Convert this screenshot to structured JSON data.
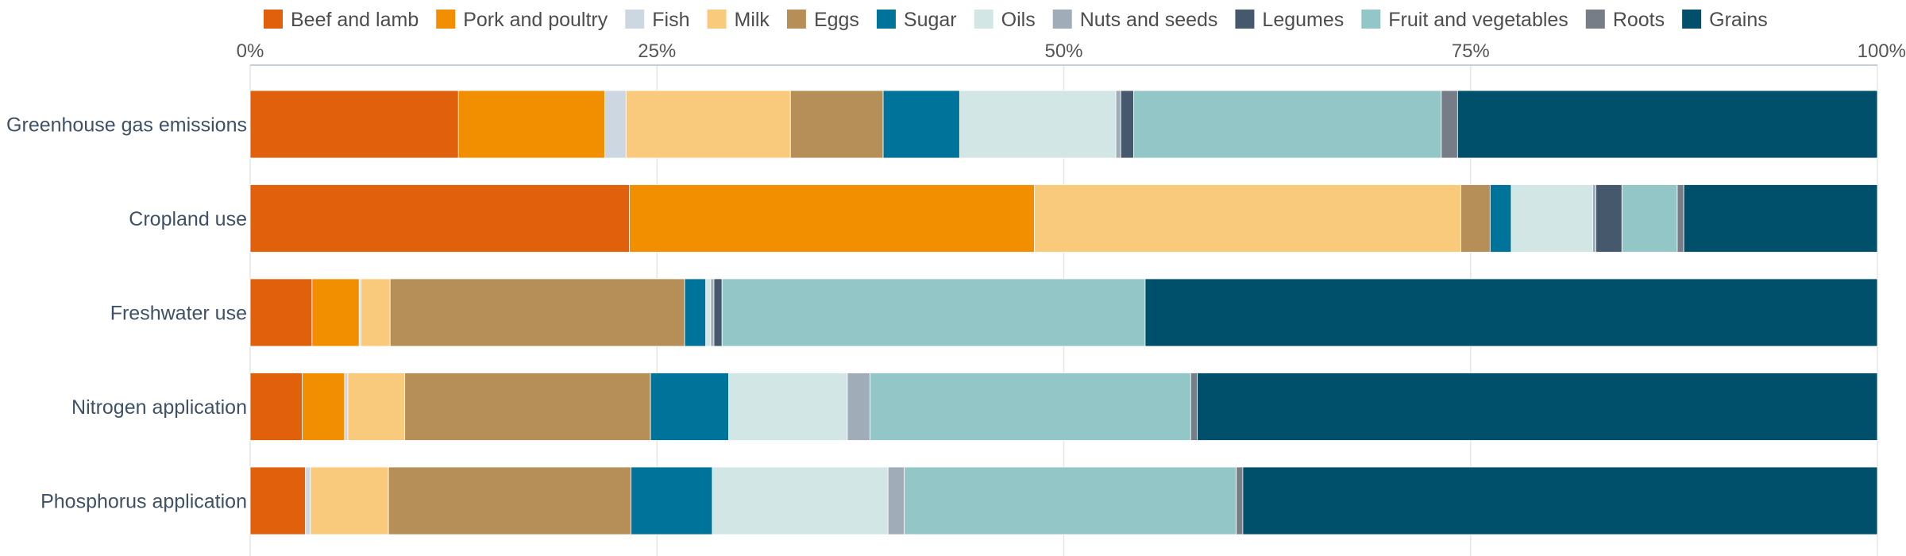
{
  "chart_data": {
    "type": "bar",
    "orientation": "horizontal",
    "stacked": true,
    "normalized": true,
    "xlim": [
      0,
      100
    ],
    "x_ticks": [
      "0%",
      "25%",
      "50%",
      "75%",
      "100%"
    ],
    "x_axis_position": "top",
    "grid": true,
    "legend_position": "top",
    "categories": [
      "Greenhouse gas emissions",
      "Cropland use",
      "Freshwater use",
      "Nitrogen application",
      "Phosphorus application"
    ],
    "series": [
      {
        "name": "Beef and lamb",
        "color": "#E0600C",
        "values": [
          12.8,
          23.3,
          3.8,
          3.2,
          3.4
        ]
      },
      {
        "name": "Pork and poultry",
        "color": "#F28F00",
        "values": [
          9.0,
          24.9,
          2.9,
          2.6,
          0.0
        ]
      },
      {
        "name": "Fish",
        "color": "#CDD7E1",
        "values": [
          1.3,
          0.0,
          0.1,
          0.2,
          0.3
        ]
      },
      {
        "name": "Milk",
        "color": "#FACA7C",
        "values": [
          10.1,
          26.2,
          1.8,
          3.5,
          4.8
        ]
      },
      {
        "name": "Eggs",
        "color": "#B68F58",
        "values": [
          5.7,
          1.8,
          18.1,
          15.1,
          14.9
        ]
      },
      {
        "name": "Sugar",
        "color": "#00739A",
        "values": [
          4.7,
          1.3,
          1.3,
          4.8,
          5.0
        ]
      },
      {
        "name": "Oils",
        "color": "#D1E6E5",
        "values": [
          9.6,
          5.0,
          0.3,
          7.3,
          10.8
        ]
      },
      {
        "name": "Nuts and seeds",
        "color": "#A1ACB9",
        "values": [
          0.3,
          0.2,
          0.2,
          1.4,
          1.0
        ]
      },
      {
        "name": "Legumes",
        "color": "#46586C",
        "values": [
          0.8,
          1.6,
          0.5,
          0.0,
          0.0
        ]
      },
      {
        "name": "Fruit and vegetables",
        "color": "#93C7C7",
        "values": [
          18.9,
          3.4,
          26.0,
          19.7,
          20.4
        ]
      },
      {
        "name": "Roots",
        "color": "#777D87",
        "values": [
          1.0,
          0.4,
          0.0,
          0.4,
          0.4
        ]
      },
      {
        "name": "Grains",
        "color": "#00506B",
        "values": [
          25.8,
          11.9,
          45.0,
          41.8,
          39.0
        ]
      }
    ]
  }
}
